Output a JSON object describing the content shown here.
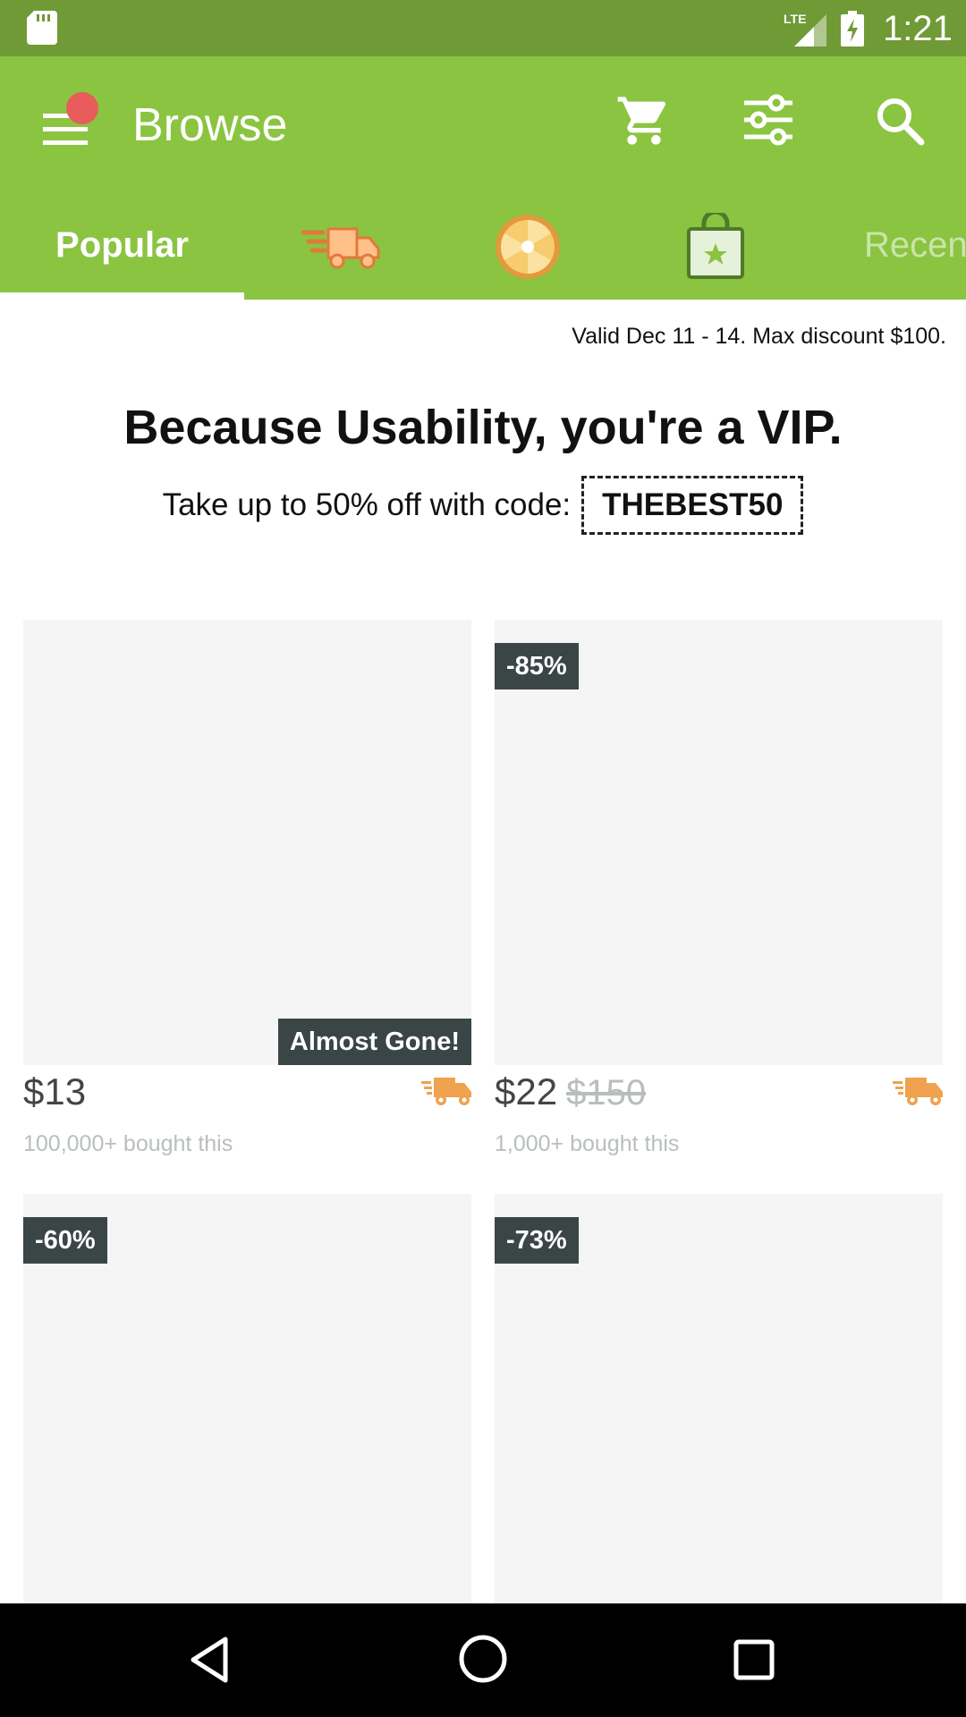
{
  "status_bar": {
    "time": "1:21",
    "network": "LTE",
    "icons": [
      "sd-card-icon",
      "signal-icon",
      "battery-charging-icon"
    ]
  },
  "app_bar": {
    "title": "Browse",
    "notification_dot_color": "#e85c5c",
    "icons": [
      "menu-icon",
      "cart-icon",
      "filter-icon",
      "search-icon"
    ]
  },
  "tabs": [
    {
      "label": "Popular",
      "selected": true
    },
    {
      "icon": "fast-shipping-icon"
    },
    {
      "icon": "prize-wheel-icon"
    },
    {
      "icon": "shopping-bag-icon"
    },
    {
      "label": "Recen"
    }
  ],
  "promo": {
    "valid_text": "Valid Dec 11 - 14. Max discount $100.",
    "title": "Because Usability, you're a VIP.",
    "description": "Take up to 50% off with code:",
    "code": "THEBEST50"
  },
  "products": [
    {
      "price": "$13",
      "old_price": "",
      "bought": "100,000+ bought this",
      "badge": "",
      "status_badge": "Almost Gone!",
      "fast_shipping": true
    },
    {
      "price": "$22",
      "old_price": "$150",
      "bought": "1,000+ bought this",
      "badge": "-85%",
      "status_badge": "",
      "fast_shipping": true
    },
    {
      "price": "",
      "old_price": "",
      "bought": "",
      "badge": "-60%",
      "status_badge": "",
      "fast_shipping": false
    },
    {
      "price": "",
      "old_price": "",
      "bought": "",
      "badge": "-73%",
      "status_badge": "",
      "fast_shipping": false
    }
  ],
  "colors": {
    "app_bar": "#8ac441",
    "status_bar": "#6f9a35",
    "badge_bg": "#3a4645",
    "shipping_orange": "#f0a24f"
  },
  "nav_bar": {
    "icons": [
      "back-icon",
      "home-icon",
      "recents-icon"
    ]
  }
}
